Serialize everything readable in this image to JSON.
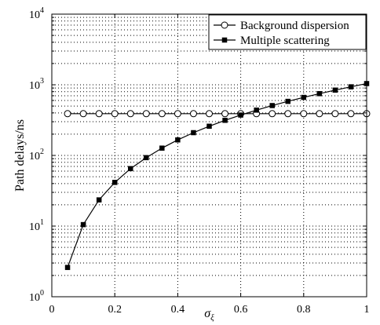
{
  "chart_data": {
    "type": "line",
    "xlabel_base": "σ",
    "xlabel_sub": "ξ",
    "ylabel": "Path delays/ns",
    "xlim": [
      0,
      1
    ],
    "ylim": [
      1,
      10000
    ],
    "y_scale": "log",
    "grid": true,
    "legend_position": "top-right",
    "x_ticks": [
      {
        "value": 0,
        "label": "0"
      },
      {
        "value": 0.2,
        "label": "0.2"
      },
      {
        "value": 0.4,
        "label": "0.4"
      },
      {
        "value": 0.6,
        "label": "0.6"
      },
      {
        "value": 0.8,
        "label": "0.8"
      },
      {
        "value": 1,
        "label": "1"
      }
    ],
    "y_ticks": [
      {
        "value": 1,
        "base": "10",
        "exp": "0"
      },
      {
        "value": 10,
        "base": "10",
        "exp": "1"
      },
      {
        "value": 100,
        "base": "10",
        "exp": "2"
      },
      {
        "value": 1000,
        "base": "10",
        "exp": "3"
      },
      {
        "value": 10000,
        "base": "10",
        "exp": "4"
      }
    ],
    "x": [
      0.05,
      0.1,
      0.15,
      0.2,
      0.25,
      0.3,
      0.35,
      0.4,
      0.45,
      0.5,
      0.55,
      0.6,
      0.65,
      0.7,
      0.75,
      0.8,
      0.85,
      0.9,
      0.95,
      1.0
    ],
    "series": [
      {
        "name": "Background dispersion",
        "marker": "circle",
        "values": [
          390,
          390,
          390,
          390,
          390,
          390,
          390,
          390,
          390,
          390,
          390,
          390,
          390,
          390,
          390,
          390,
          390,
          390,
          390,
          390
        ]
      },
      {
        "name": "Multiple scattering",
        "marker": "square",
        "values": [
          2.6,
          10.5,
          23.5,
          41.5,
          65,
          93,
          127,
          166,
          210,
          259,
          314,
          373,
          438,
          508,
          583,
          663,
          749,
          840,
          936,
          1040
        ]
      }
    ]
  }
}
